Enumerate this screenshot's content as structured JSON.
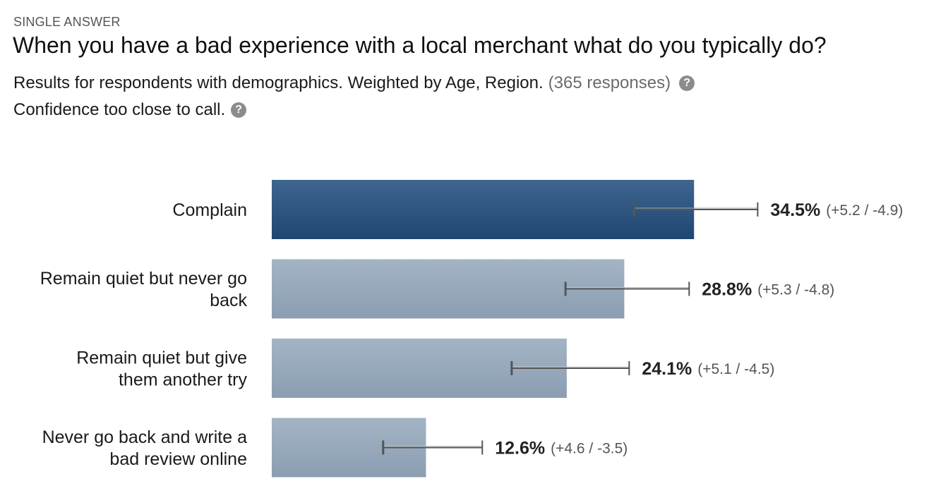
{
  "header": {
    "kicker": "SINGLE ANSWER",
    "question": "When you have a bad experience with a local merchant what do you typically do?",
    "results_text": "Results for respondents with demographics. Weighted by Age, Region.",
    "responses_text": "(365 responses)",
    "confidence_text": "Confidence too close to call.",
    "help_icon": "question-mark-circle-icon"
  },
  "colors": {
    "highlight_bar_top": "#3f6690",
    "highlight_bar_bottom": "#1f4670",
    "bar_top": "#a3b4c5",
    "bar_bottom": "#8b9db1",
    "error_bar": "#555555"
  },
  "chart_data": {
    "type": "bar",
    "orientation": "horizontal",
    "categories": [
      [
        "Complain"
      ],
      [
        "Remain quiet but never go",
        "back"
      ],
      [
        "Remain quiet but give",
        "them another try"
      ],
      [
        "Never go back and write a",
        "bad review online"
      ]
    ],
    "values": [
      34.5,
      28.8,
      24.1,
      12.6
    ],
    "value_labels": [
      "34.5%",
      "28.8%",
      "24.1%",
      "12.6%"
    ],
    "error_plus": [
      5.2,
      5.3,
      5.1,
      4.6
    ],
    "error_minus": [
      4.9,
      4.8,
      4.5,
      3.5
    ],
    "error_labels": [
      "(+5.2 / -4.9)",
      "(+5.3 / -4.8)",
      "(+5.1 / -4.5)",
      "(+4.6 / -3.5)"
    ],
    "highlighted_index": 0,
    "unit": "%",
    "xlim": [
      0,
      100
    ],
    "grid": false,
    "legend": "none"
  }
}
